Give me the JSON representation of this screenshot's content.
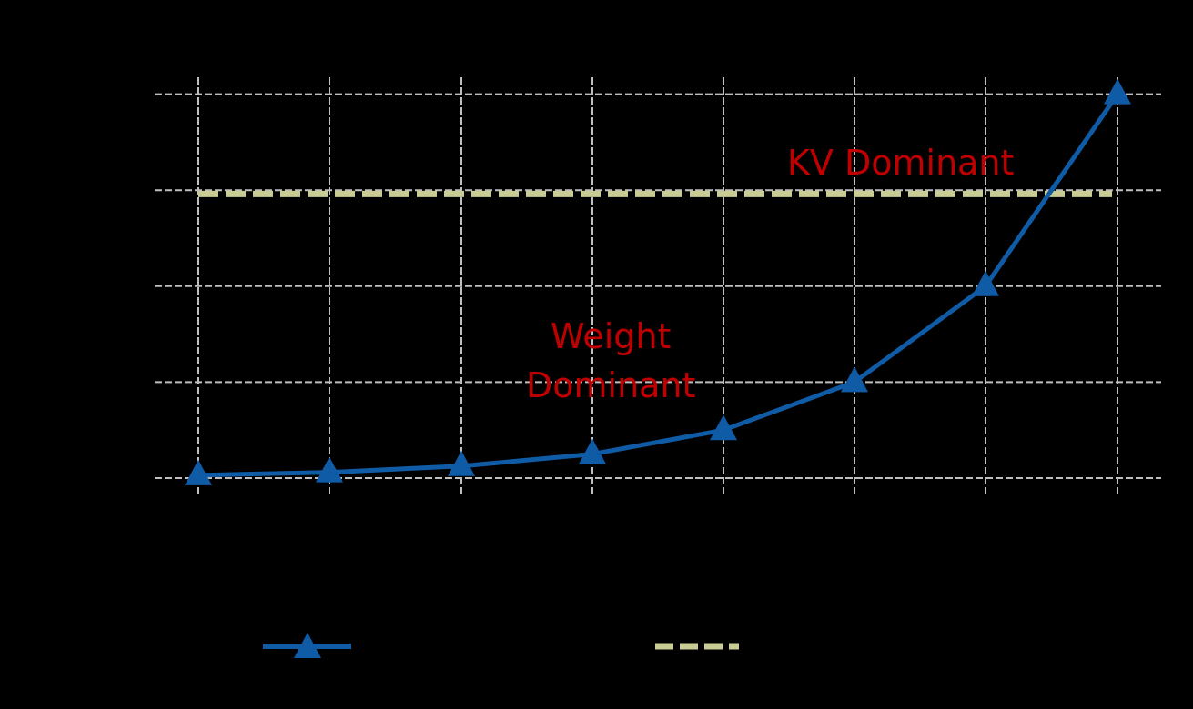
{
  "chart_data": {
    "type": "line",
    "title": "",
    "xlabel": "",
    "ylabel": "",
    "x_index": [
      1,
      2,
      3,
      4,
      5,
      6,
      7,
      8
    ],
    "ylim": [
      0,
      4
    ],
    "grid": true,
    "y_gridlines": [
      0,
      1,
      2,
      3,
      4
    ],
    "series": [
      {
        "name": "",
        "style": "solid line with triangle markers",
        "color": "#0F5BA6",
        "values": [
          0.03,
          0.06,
          0.125,
          0.25,
          0.5,
          1.0,
          2.0,
          4.0
        ]
      },
      {
        "name": "",
        "style": "dashed horizontal threshold",
        "color": "#C9CC95",
        "values": [
          2.96,
          2.96,
          2.96,
          2.96,
          2.96,
          2.96,
          2.96,
          2.96
        ]
      }
    ],
    "annotations": [
      {
        "text": "KV Dominant",
        "color": "#C00000",
        "position": "upper right, above threshold"
      },
      {
        "text": "Weight\nDominant",
        "color": "#C00000",
        "position": "center, below threshold"
      }
    ],
    "legend_position": "bottom"
  },
  "annotations": {
    "kv": "KV Dominant",
    "weight_line1": "Weight",
    "weight_line2": "Dominant"
  },
  "colors": {
    "background": "#000000",
    "grid": "#BFBFBF",
    "series_main": "#0F5BA6",
    "threshold": "#C9CC95",
    "annotation": "#C00000"
  }
}
